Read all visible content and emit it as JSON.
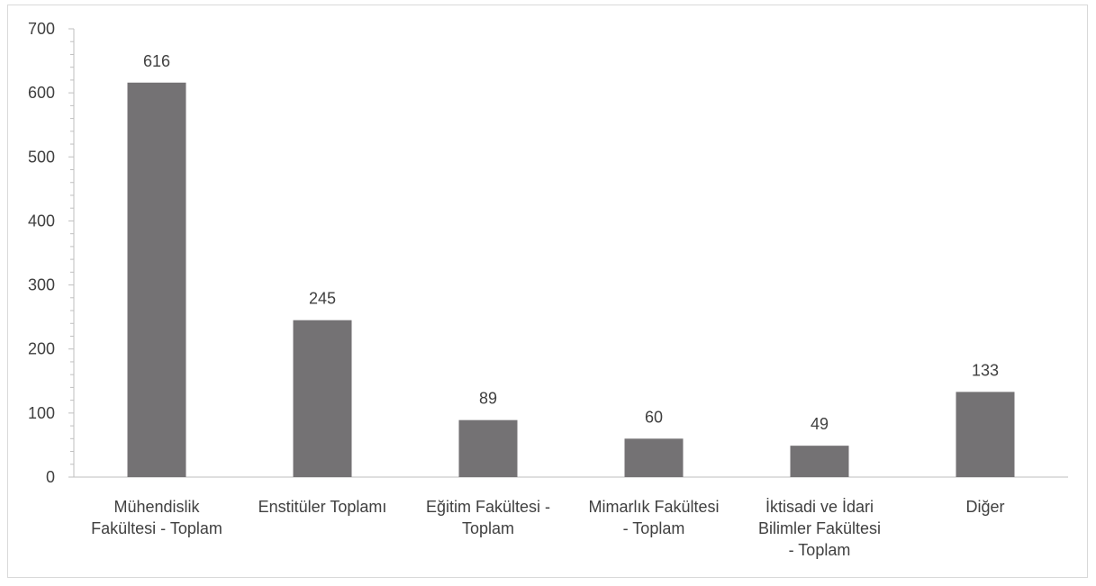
{
  "chart_data": {
    "type": "bar",
    "categories": [
      [
        "Mühendislik",
        "Fakültesi - Toplam"
      ],
      [
        "Enstitüler Toplamı"
      ],
      [
        "Eğitim Fakültesi -",
        "Toplam"
      ],
      [
        "Mimarlık Fakültesi",
        "- Toplam"
      ],
      [
        "İktisadi ve İdari",
        "Bilimler  Fakültesi",
        "- Toplam"
      ],
      [
        "Diğer"
      ]
    ],
    "values": [
      616,
      245,
      89,
      60,
      49,
      133
    ],
    "data_labels": [
      "616",
      "245",
      "89",
      "60",
      "49",
      "133"
    ],
    "y_ticks": [
      "0",
      "100",
      "200",
      "300",
      "400",
      "500",
      "600",
      "700"
    ],
    "ylim": [
      0,
      700
    ],
    "grid": false,
    "legend": "none",
    "bar_color": "#747274",
    "axis_color": "#bfbfbf",
    "text_color": "#404040"
  }
}
